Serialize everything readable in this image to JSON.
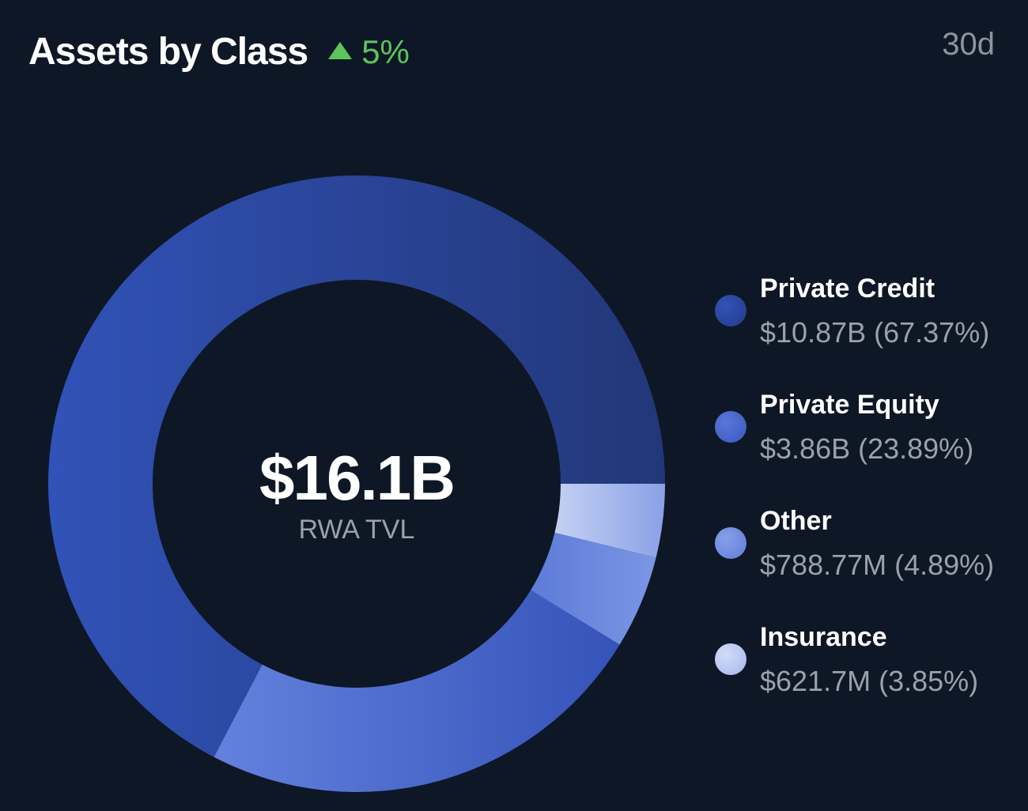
{
  "header": {
    "title": "Assets by Class",
    "change": "5%",
    "change_direction": "up",
    "period": "30d"
  },
  "center": {
    "value": "$16.1B",
    "label": "RWA TVL"
  },
  "legend": [
    {
      "name": "Private Credit",
      "value_text": "$10.87B (67.37%)"
    },
    {
      "name": "Private Equity",
      "value_text": "$3.86B (23.89%)"
    },
    {
      "name": "Other",
      "value_text": "$788.77M (4.89%)"
    },
    {
      "name": "Insurance",
      "value_text": "$621.7M (3.85%)"
    }
  ],
  "colors": {
    "background": "#0e1726",
    "positive": "#5cc45c",
    "private_credit": "#2b46a3",
    "private_equity": "#4561cc",
    "other": "#6f8ae0",
    "insurance": "#b2c1ef"
  },
  "chart_data": {
    "type": "pie",
    "donut": true,
    "labels": [
      "Private Credit",
      "Private Equity",
      "Other",
      "Insurance"
    ],
    "values": [
      10.87,
      3.86,
      0.78877,
      0.6217
    ],
    "percentages": [
      67.37,
      23.89,
      4.89,
      3.85
    ],
    "unit": "$B",
    "total": "$16.1B",
    "legend": "right"
  }
}
